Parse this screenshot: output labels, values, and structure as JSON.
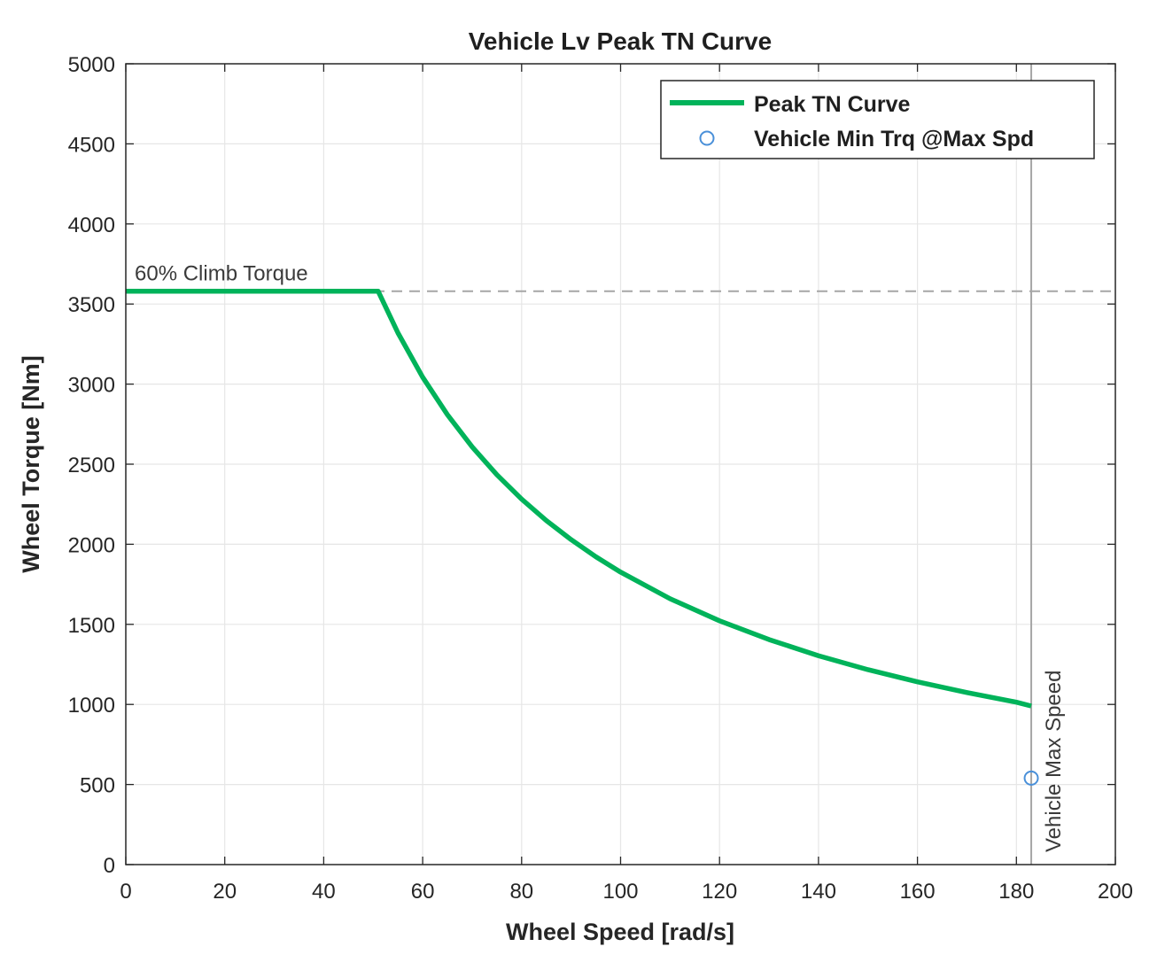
{
  "chart_data": {
    "type": "line",
    "title": "Vehicle Lv Peak TN Curve",
    "xlabel": "Wheel Speed [rad/s]",
    "ylabel": "Wheel Torque [Nm]",
    "xlim": [
      0,
      200
    ],
    "ylim": [
      0,
      5000
    ],
    "xticks": [
      0,
      20,
      40,
      60,
      80,
      100,
      120,
      140,
      160,
      180,
      200
    ],
    "yticks": [
      0,
      500,
      1000,
      1500,
      2000,
      2500,
      3000,
      3500,
      4000,
      4500,
      5000
    ],
    "grid": true,
    "legend_position": "top-right",
    "series": [
      {
        "name": "Peak TN Curve",
        "color": "#00b35a",
        "style": "solid",
        "x": [
          0,
          51,
          55,
          60,
          65,
          70,
          75,
          80,
          85,
          90,
          95,
          100,
          110,
          120,
          130,
          140,
          150,
          160,
          170,
          180,
          183
        ],
        "y": [
          3580,
          3580,
          3320,
          3043,
          2809,
          2608,
          2434,
          2282,
          2148,
          2029,
          1922,
          1826,
          1660,
          1522,
          1405,
          1304,
          1217,
          1141,
          1074,
          1014,
          990
        ]
      },
      {
        "name": "Vehicle Min Trq @Max Spd",
        "color": "#4a90d9",
        "style": "marker-circle",
        "x": [
          183
        ],
        "y": [
          540
        ]
      }
    ],
    "reference_lines": [
      {
        "orientation": "horizontal",
        "value": 3580,
        "label": "60% Climb Torque",
        "style": "dashed",
        "color": "#a6a6a6"
      },
      {
        "orientation": "vertical",
        "value": 183,
        "label": "Vehicle Max Speed",
        "style": "solid",
        "color": "#a6a6a6"
      }
    ]
  }
}
